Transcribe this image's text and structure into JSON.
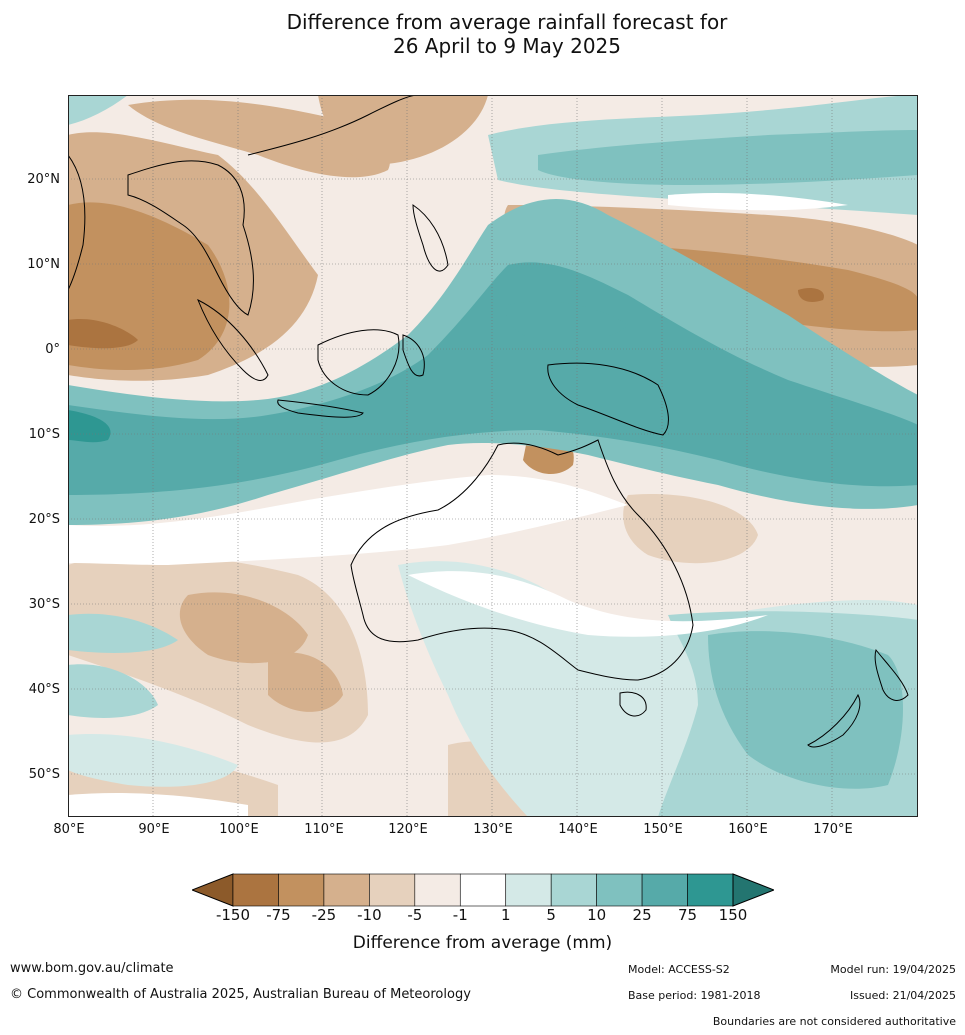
{
  "title_line1": "Difference from average rainfall forecast for",
  "title_line2": "26 April to 9 May 2025",
  "lat_ticks": [
    "20°N",
    "10°N",
    "0°",
    "10°S",
    "20°S",
    "30°S",
    "40°S",
    "50°S"
  ],
  "lon_ticks": [
    "80°E",
    "90°E",
    "100°E",
    "110°E",
    "120°E",
    "130°E",
    "140°E",
    "150°E",
    "160°E",
    "170°E"
  ],
  "legend": {
    "title": "Difference from average (mm)",
    "ticks": [
      "-150",
      "-75",
      "-25",
      "-10",
      "-5",
      "-1",
      "1",
      "5",
      "10",
      "25",
      "75",
      "150"
    ],
    "colors": [
      "#8c5a2a",
      "#ab7440",
      "#c2915f",
      "#d5b08d",
      "#e6d1bd",
      "#f4ebe5",
      "#ffffff",
      "#d4e9e7",
      "#a9d6d4",
      "#7fc1bf",
      "#56aaa9",
      "#2e9792",
      "#237570"
    ]
  },
  "footer": {
    "website": "www.bom.gov.au/climate",
    "copyright": "© Commonwealth of Australia 2025, Australian Bureau of Meteorology",
    "model": "Model: ACCESS-S2",
    "base_period": "Base period: 1981-2018",
    "model_run": "Model run: 19/04/2025",
    "issued": "Issued: 21/04/2025",
    "disclaimer": "Boundaries are not considered authoritative"
  }
}
